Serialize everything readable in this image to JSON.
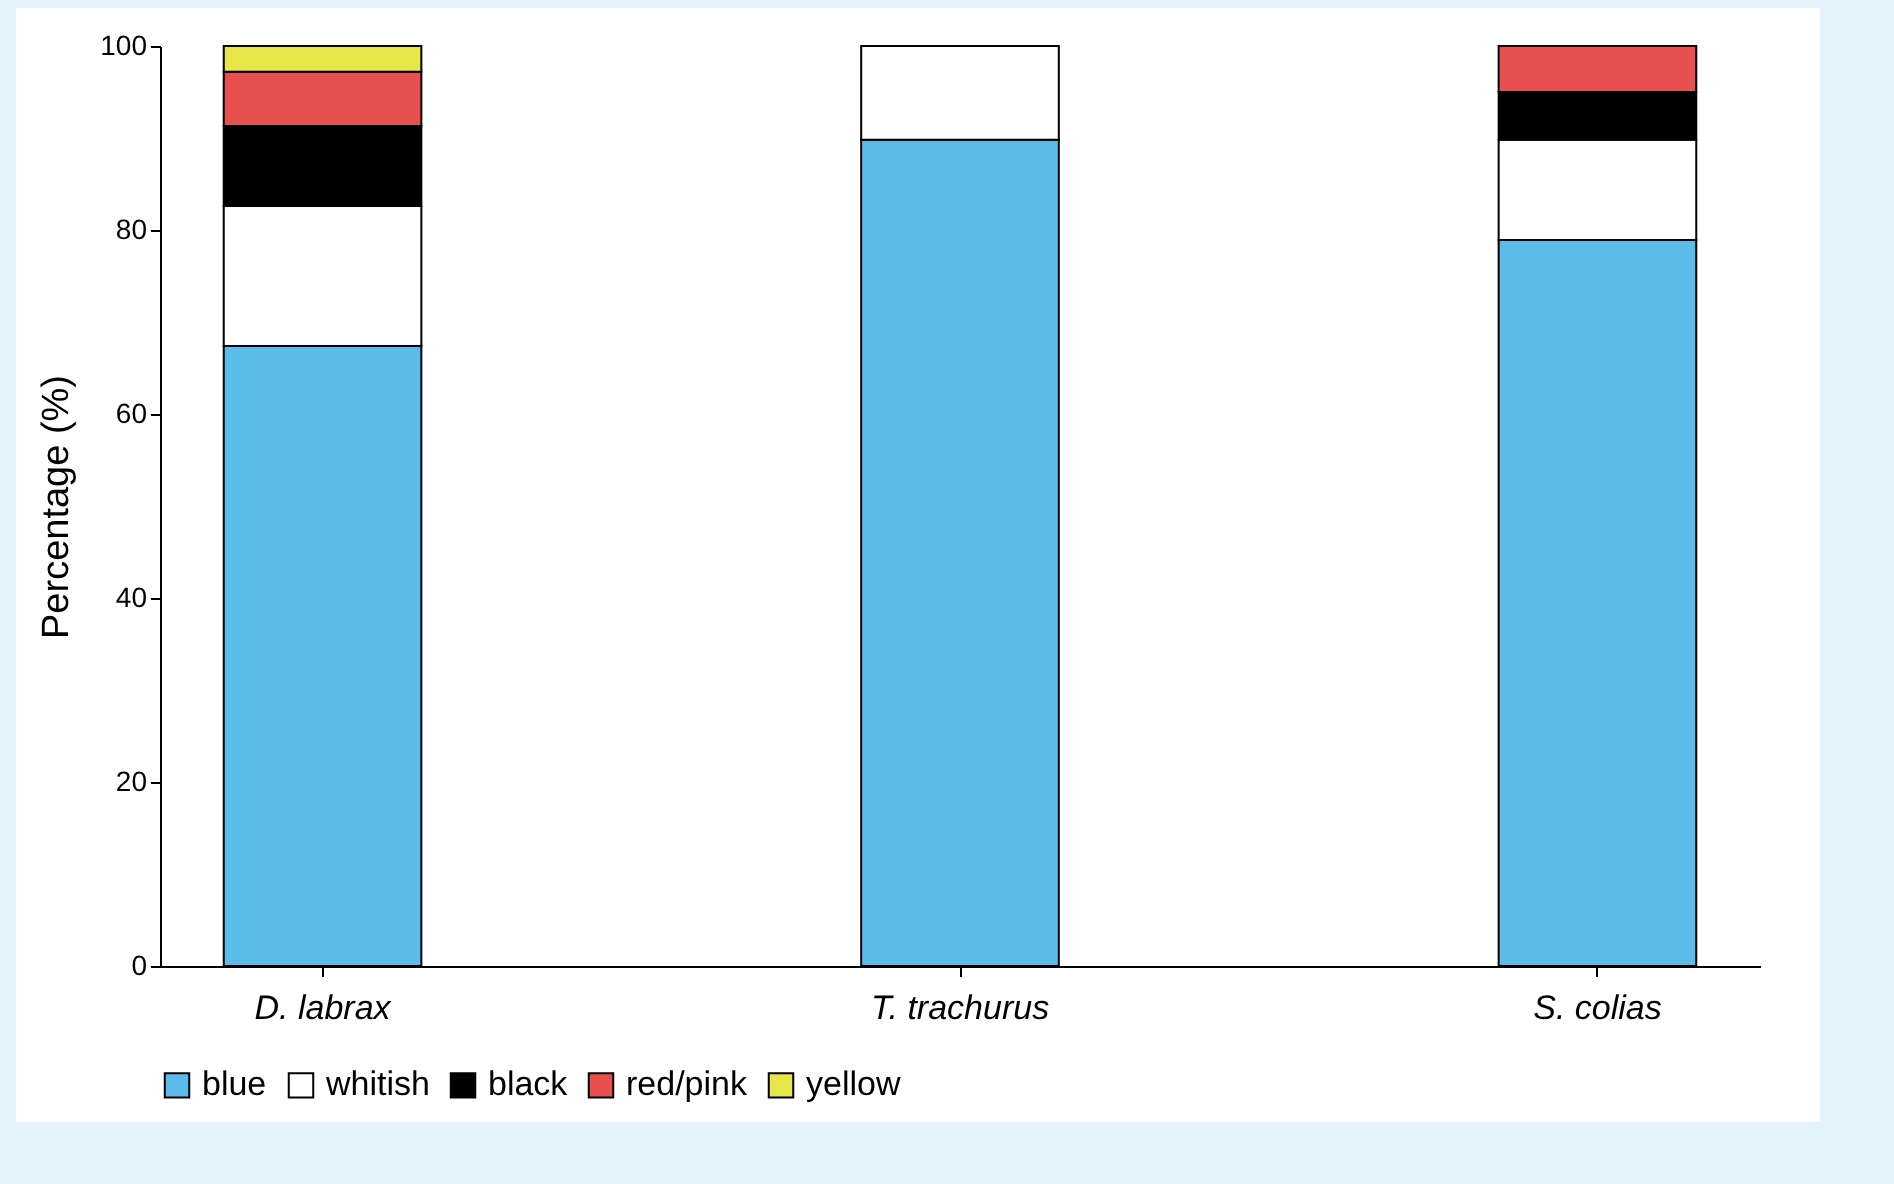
{
  "chart_data": {
    "type": "bar",
    "stacked": true,
    "ylabel": "Percentage (%)",
    "categories": [
      "D. labrax",
      "T. trachurus",
      "S. colias"
    ],
    "series": [
      {
        "name": "blue",
        "color": "#5bbcea",
        "values": [
          67.4,
          89.8,
          78.9
        ]
      },
      {
        "name": "whitish",
        "color": "#ffffff",
        "values": [
          15.2,
          10.2,
          10.9
        ]
      },
      {
        "name": "black",
        "color": "#000000",
        "values": [
          8.7,
          null,
          5.2
        ]
      },
      {
        "name": "red/pink",
        "color": "#e8504f",
        "values": [
          5.9,
          null,
          5.0
        ]
      },
      {
        "name": "yellow",
        "color": "#e6e64a",
        "values": [
          2.8,
          null,
          null
        ]
      }
    ],
    "ylim": [
      0,
      100
    ],
    "yticks": [
      0,
      20,
      40,
      60,
      80,
      100
    ],
    "grid": false,
    "legend": "bottom"
  }
}
